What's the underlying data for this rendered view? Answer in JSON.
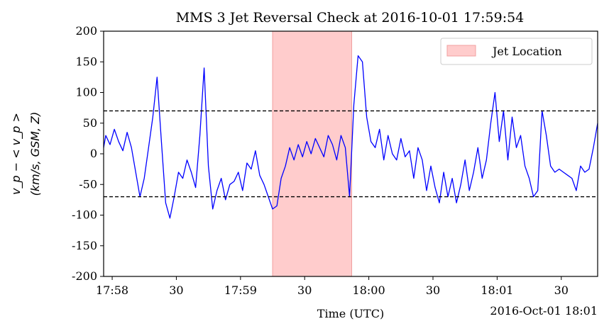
{
  "chart_data": {
    "type": "line",
    "title": "MMS 3 Jet Reversal Check at 2016-10-01 17:59:54",
    "xlabel": "Time (UTC)",
    "xlabel_offset": "2016-Oct-01 18:01",
    "ylabel_line1": "v_p − < v_p >",
    "ylabel_line2": "(km/s, GSM, Z)",
    "ylim": [
      -200,
      200
    ],
    "yticks": [
      -200,
      -150,
      -100,
      -50,
      0,
      50,
      100,
      150,
      200
    ],
    "x_range_seconds": [
      "17:57:56",
      "18:01:47"
    ],
    "xticks": [
      {
        "time": "17:58:00",
        "label": "17:58"
      },
      {
        "time": "17:58:30",
        "label": "30"
      },
      {
        "time": "17:59:00",
        "label": "17:59"
      },
      {
        "time": "17:59:30",
        "label": "30"
      },
      {
        "time": "18:00:00",
        "label": "18:00"
      },
      {
        "time": "18:00:30",
        "label": "30"
      },
      {
        "time": "18:01:00",
        "label": "18:01"
      },
      {
        "time": "18:01:30",
        "label": "30"
      }
    ],
    "thresholds": [
      70,
      -70
    ],
    "threshold_style": "black dashed",
    "jet_region": {
      "start": "17:59:15",
      "end": "17:59:52",
      "label": "Jet Location",
      "color": "#ffcccc",
      "edge": "#f0a0a0"
    },
    "legend": {
      "placement": "top-right",
      "entries": [
        "Jet Location"
      ]
    },
    "series": [
      {
        "color": "#0000ff",
        "x": [
          "17:57:56",
          "17:57:57",
          "17:57:59",
          "17:58:01",
          "17:58:03",
          "17:58:05",
          "17:58:07",
          "17:58:09",
          "17:58:11",
          "17:58:13",
          "17:58:15",
          "17:58:17",
          "17:58:19",
          "17:58:21",
          "17:58:23",
          "17:58:25",
          "17:58:27",
          "17:58:29",
          "17:58:31",
          "17:58:33",
          "17:58:35",
          "17:58:37",
          "17:58:39",
          "17:58:41",
          "17:58:43",
          "17:58:45",
          "17:58:47",
          "17:58:49",
          "17:58:51",
          "17:58:53",
          "17:58:55",
          "17:58:57",
          "17:58:59",
          "17:59:01",
          "17:59:03",
          "17:59:05",
          "17:59:07",
          "17:59:09",
          "17:59:11",
          "17:59:13",
          "17:59:15",
          "17:59:17",
          "17:59:19",
          "17:59:21",
          "17:59:23",
          "17:59:25",
          "17:59:27",
          "17:59:29",
          "17:59:31",
          "17:59:33",
          "17:59:35",
          "17:59:37",
          "17:59:39",
          "17:59:41",
          "17:59:43",
          "17:59:45",
          "17:59:47",
          "17:59:49",
          "17:59:51",
          "17:59:53",
          "17:59:55",
          "17:59:57",
          "17:59:59",
          "18:00:01",
          "18:00:03",
          "18:00:05",
          "18:00:07",
          "18:00:09",
          "18:00:11",
          "18:00:13",
          "18:00:15",
          "18:00:17",
          "18:00:19",
          "18:00:21",
          "18:00:23",
          "18:00:25",
          "18:00:27",
          "18:00:29",
          "18:00:31",
          "18:00:33",
          "18:00:35",
          "18:00:37",
          "18:00:39",
          "18:00:41",
          "18:00:43",
          "18:00:45",
          "18:00:47",
          "18:00:49",
          "18:00:51",
          "18:00:53",
          "18:00:55",
          "18:00:57",
          "18:00:59",
          "18:01:01",
          "18:01:03",
          "18:01:05",
          "18:01:07",
          "18:01:09",
          "18:01:11",
          "18:01:13",
          "18:01:15",
          "18:01:17",
          "18:01:19",
          "18:01:21",
          "18:01:23",
          "18:01:25",
          "18:01:27",
          "18:01:29",
          "18:01:31",
          "18:01:33",
          "18:01:35",
          "18:01:37",
          "18:01:39",
          "18:01:41",
          "18:01:43",
          "18:01:45",
          "18:01:47"
        ],
        "y": [
          10,
          30,
          15,
          40,
          20,
          5,
          35,
          10,
          -30,
          -70,
          -40,
          10,
          60,
          125,
          20,
          -80,
          -105,
          -70,
          -30,
          -40,
          -10,
          -30,
          -55,
          30,
          140,
          -20,
          -90,
          -60,
          -40,
          -75,
          -50,
          -45,
          -30,
          -60,
          -15,
          -25,
          5,
          -35,
          -50,
          -70,
          -90,
          -85,
          -40,
          -20,
          10,
          -10,
          15,
          -5,
          20,
          0,
          25,
          10,
          -5,
          30,
          15,
          -10,
          30,
          10,
          -70,
          80,
          160,
          150,
          60,
          20,
          10,
          40,
          -10,
          30,
          0,
          -10,
          25,
          -5,
          5,
          -40,
          10,
          -10,
          -60,
          -20,
          -55,
          -80,
          -30,
          -70,
          -40,
          -80,
          -50,
          -10,
          -60,
          -30,
          10,
          -40,
          -10,
          50,
          100,
          20,
          70,
          -10,
          60,
          10,
          30,
          -20,
          -40,
          -70,
          -60,
          70,
          30,
          -20,
          -30,
          -25,
          -30,
          -35,
          -40,
          -60,
          -20,
          -30,
          -25,
          10,
          50
        ]
      }
    ]
  }
}
